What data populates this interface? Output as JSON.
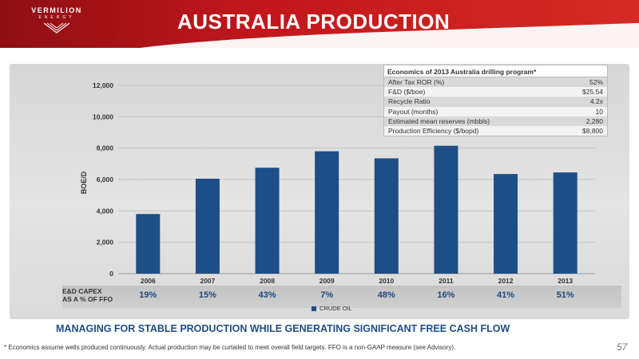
{
  "brand": {
    "name": "VERMILION",
    "sub": "ENERGY"
  },
  "slide_title": "AUSTRALIA PRODUCTION",
  "colors": {
    "bar": "#1d4e86",
    "header": "#c1171c",
    "subtitle": "#1d4e86"
  },
  "chart_data": {
    "type": "bar",
    "categories": [
      "2006",
      "2007",
      "2008",
      "2009",
      "2010",
      "2011",
      "2012",
      "2013"
    ],
    "series": [
      {
        "name": "CRUDE OIL",
        "values": [
          3800,
          6050,
          6750,
          7800,
          7350,
          8150,
          6350,
          6450
        ]
      }
    ],
    "ylabel": "BOE/D",
    "ylim": [
      0,
      12000
    ],
    "yticks": [
      "0",
      "2,000",
      "4,000",
      "6,000",
      "8,000",
      "10,000",
      "12,000"
    ],
    "grid": true,
    "legend": "bottom"
  },
  "economics": {
    "title": "Economics of 2013 Australia drilling program*",
    "rows": [
      {
        "label": "After Tax ROR (%)",
        "value": "52%"
      },
      {
        "label": "F&D ($/boe)",
        "value": "$25.54"
      },
      {
        "label": "Recycle Ratio",
        "value": "4.2x"
      },
      {
        "label": "Payout (months)",
        "value": "10"
      },
      {
        "label": "Estimated mean reserves (mbbls)",
        "value": "2,280"
      },
      {
        "label": "Production Efficiency ($/bopd)",
        "value": "$8,800"
      }
    ]
  },
  "capex": {
    "label_line1": "E&D CAPEX",
    "label_line2": "AS A % OF FFO",
    "values": [
      "19%",
      "15%",
      "43%",
      "7%",
      "48%",
      "16%",
      "41%",
      "51%"
    ]
  },
  "legend_label": "CRUDE OIL",
  "subtitle": "MANAGING FOR STABLE PRODUCTION WHILE GENERATING SIGNIFICANT FREE CASH FLOW",
  "footnote": "* Economics assume wells produced continuously. Actual production may be curtailed to meet overall field targets. FFO is a non-GAAP measure (see Advisory).",
  "page_number": "57"
}
